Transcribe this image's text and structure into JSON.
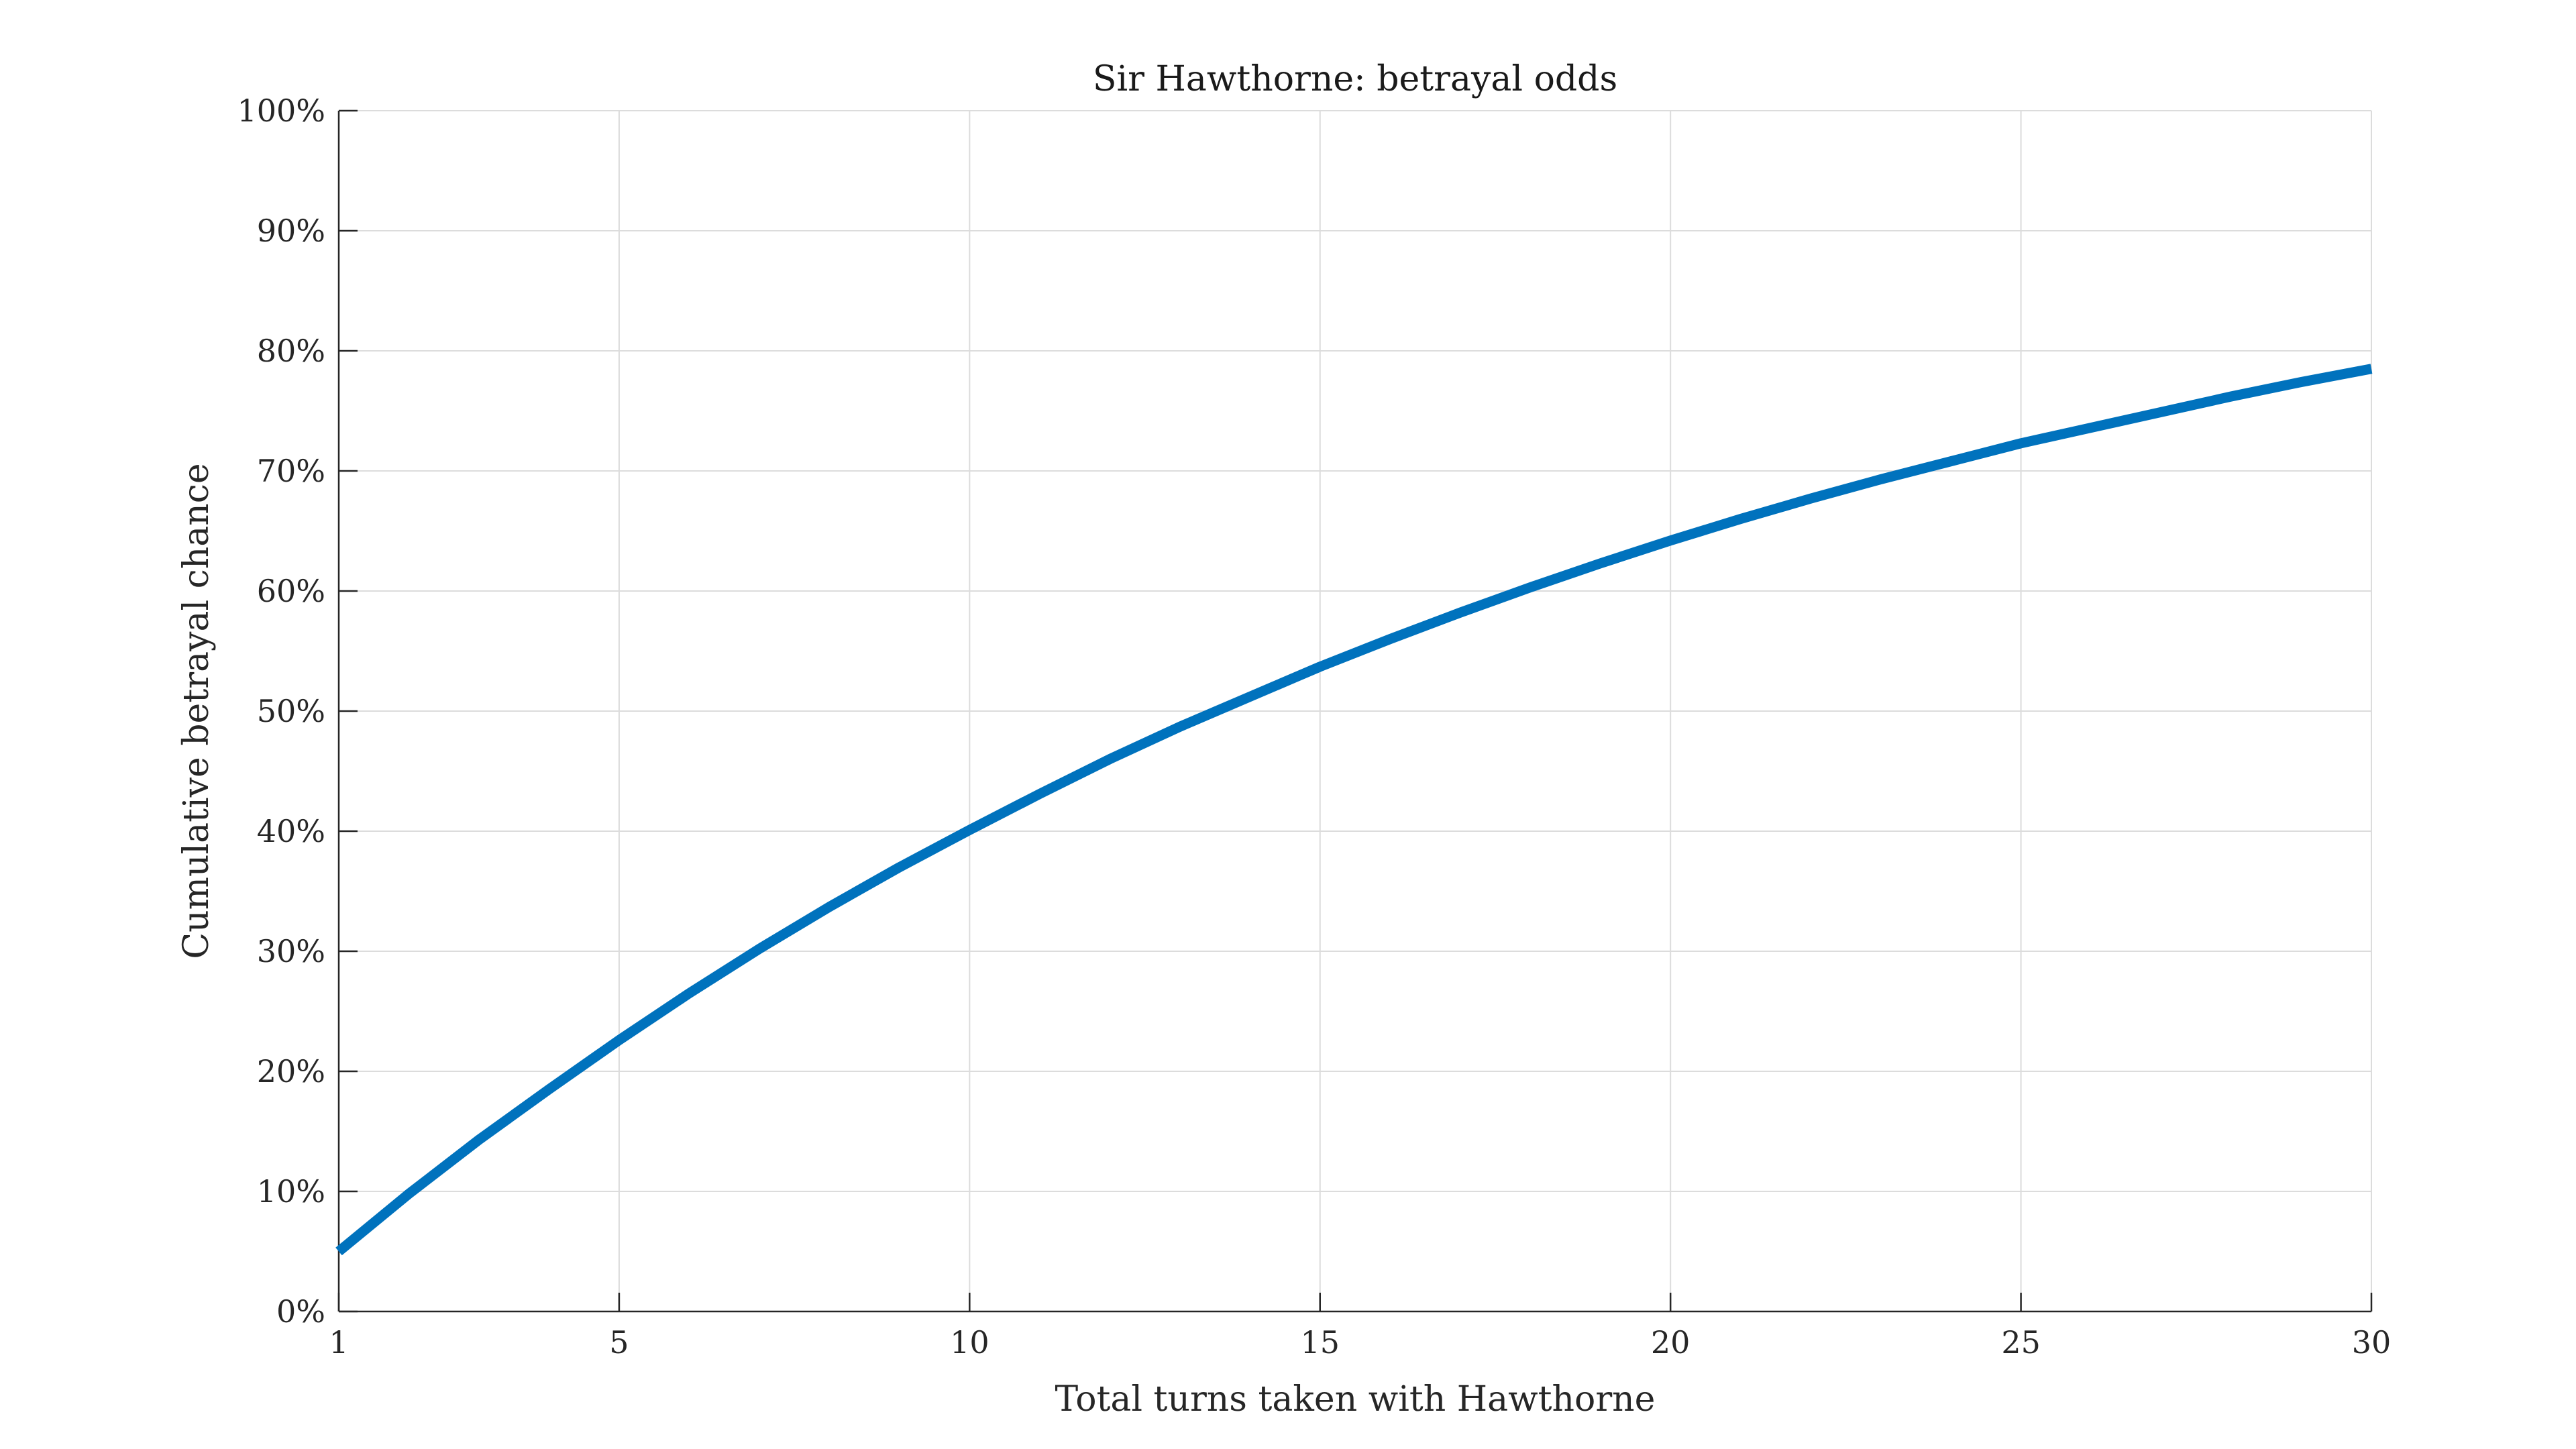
{
  "chart_data": {
    "type": "line",
    "title": "Sir Hawthorne: betrayal odds",
    "xlabel": "Total turns taken with Hawthorne",
    "ylabel": "Cumulative betrayal chance",
    "xlim": [
      1,
      30
    ],
    "ylim": [
      0,
      100
    ],
    "x_ticks": [
      1,
      5,
      10,
      15,
      20,
      25,
      30
    ],
    "x_tick_labels": [
      "1",
      "5",
      "10",
      "15",
      "20",
      "25",
      "30"
    ],
    "y_ticks": [
      0,
      10,
      20,
      30,
      40,
      50,
      60,
      70,
      80,
      90,
      100
    ],
    "y_tick_labels": [
      "0%",
      "10%",
      "20%",
      "30%",
      "40%",
      "50%",
      "60%",
      "70%",
      "80%",
      "90%",
      "100%"
    ],
    "grid": true,
    "series": [
      {
        "color": "#0072bd",
        "x": [
          1,
          2,
          3,
          4,
          5,
          6,
          7,
          8,
          9,
          10,
          11,
          12,
          13,
          14,
          15,
          16,
          17,
          18,
          19,
          20,
          21,
          22,
          23,
          24,
          25,
          26,
          27,
          28,
          29,
          30
        ],
        "y": [
          5.0,
          9.8,
          14.3,
          18.5,
          22.6,
          26.5,
          30.2,
          33.7,
          37.0,
          40.1,
          43.1,
          46.0,
          48.7,
          51.2,
          53.7,
          56.0,
          58.2,
          60.3,
          62.3,
          64.2,
          66.0,
          67.7,
          69.3,
          70.8,
          72.3,
          73.6,
          74.9,
          76.2,
          77.4,
          78.5
        ]
      }
    ]
  }
}
